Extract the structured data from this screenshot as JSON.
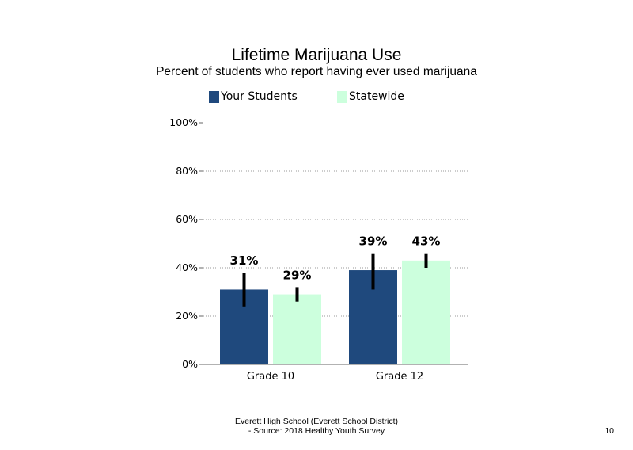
{
  "chart_data": {
    "type": "bar",
    "title": "Lifetime Marijuana Use",
    "subtitle": "Percent of students who report having ever used marijuana",
    "categories": [
      "Grade 10",
      "Grade 12"
    ],
    "series": [
      {
        "name": "Your Students",
        "values": [
          31,
          39
        ],
        "labels": [
          "31%",
          "39%"
        ],
        "error_low": [
          24,
          31
        ],
        "error_high": [
          38,
          46
        ],
        "color": "#1F497D"
      },
      {
        "name": "Statewide",
        "values": [
          29,
          43
        ],
        "labels": [
          "29%",
          "43%"
        ],
        "error_low": [
          26,
          40
        ],
        "error_high": [
          32,
          46
        ],
        "color": "#CCFFDD"
      }
    ],
    "ylim": [
      0,
      100
    ],
    "yticks": [
      0,
      20,
      40,
      60,
      80,
      100
    ],
    "ytick_labels": [
      "0%",
      "20%",
      "40%",
      "60%",
      "80%",
      "100%"
    ],
    "grid": "dotted horizontal",
    "legend_position": "top"
  },
  "footer": {
    "line1": "Everett High  School (Everett School District)",
    "line2": "- Source: 2018 Healthy  Youth Survey"
  },
  "page_number": "10"
}
